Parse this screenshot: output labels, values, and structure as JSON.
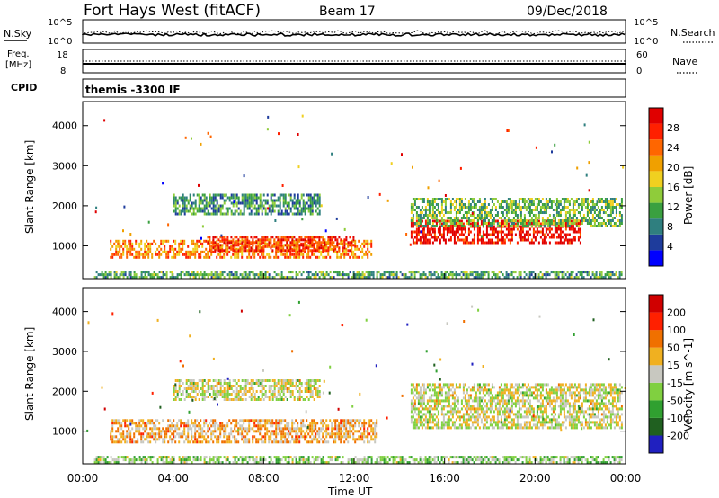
{
  "header": {
    "station": "Fort Hays West (fitACF)",
    "beam": "Beam 17",
    "date": "09/Dec/2018"
  },
  "aux_panels": {
    "nsky_label": "N.Sky",
    "nsearch_label": "N.Search",
    "noise_tick_top": "10^5",
    "noise_tick_bottom": "10^0",
    "freq_label_1": "Freq.",
    "freq_label_2": "[MHz]",
    "freq_ticks": [
      "18",
      "8"
    ],
    "nave_label": "Nave",
    "nave_ticks": [
      "60",
      "0"
    ],
    "cpid_label": "CPID",
    "cpid_value": "themis -3300 IF"
  },
  "chart_data": [
    {
      "type": "heatmap",
      "quantity": "Power",
      "ylabel": "Slant Range [km]",
      "xlabel": "",
      "colorbar_label": "Power [dB]",
      "colorbar_ticks": [
        "28",
        "24",
        "20",
        "16",
        "12",
        "8",
        "4"
      ],
      "colors": [
        "#0000ff",
        "#1e3c9c",
        "#2f7f7f",
        "#3aa040",
        "#8fcc3a",
        "#f0d020",
        "#f0a000",
        "#ff6600",
        "#ff2000",
        "#e00000"
      ],
      "ylim": [
        180,
        4600
      ],
      "yticks": [
        1000,
        2000,
        3000,
        4000
      ],
      "xlim_hours": [
        0,
        24
      ],
      "regions": [
        {
          "t0": 1.2,
          "t1": 12.8,
          "r0": 700,
          "r1": 1150,
          "level": 0.7
        },
        {
          "t0": 5.5,
          "t1": 12.0,
          "r0": 850,
          "r1": 1250,
          "level": 0.85
        },
        {
          "t0": 14.5,
          "t1": 22.0,
          "r0": 1100,
          "r1": 1650,
          "level": 0.95
        },
        {
          "t0": 4.0,
          "t1": 10.5,
          "r0": 1800,
          "r1": 2300,
          "level": 0.3
        },
        {
          "t0": 14.5,
          "t1": 23.8,
          "r0": 1500,
          "r1": 2200,
          "level": 0.4
        },
        {
          "t0": 0.5,
          "t1": 23.8,
          "r0": 200,
          "r1": 380,
          "level": 0.35
        }
      ]
    },
    {
      "type": "heatmap",
      "quantity": "Velocity",
      "ylabel": "Slant Range [km]",
      "xlabel": "Time UT",
      "colorbar_label": "Velocity [m s^-1]",
      "colorbar_ticks": [
        "200",
        "100",
        "50",
        "15",
        "-15",
        "-50",
        "-100",
        "-200"
      ],
      "colors": [
        "#2020c0",
        "#206020",
        "#30a030",
        "#80d040",
        "#c8c8c0",
        "#f0b020",
        "#f07000",
        "#ff2000",
        "#d00000"
      ],
      "ylim": [
        180,
        4600
      ],
      "yticks": [
        1000,
        2000,
        3000,
        4000
      ],
      "xlim_hours": [
        0,
        24
      ],
      "xticks": [
        "00:00",
        "04:00",
        "08:00",
        "12:00",
        "16:00",
        "20:00",
        "00:00"
      ],
      "regions": [
        {
          "t0": 1.2,
          "t1": 13.0,
          "r0": 700,
          "r1": 1300,
          "level": 0.62
        },
        {
          "t0": 14.5,
          "t1": 23.8,
          "r0": 1100,
          "r1": 2200,
          "level": 0.5
        },
        {
          "t0": 4.0,
          "t1": 10.5,
          "r0": 1800,
          "r1": 2300,
          "level": 0.5
        },
        {
          "t0": 0.5,
          "t1": 23.8,
          "r0": 200,
          "r1": 380,
          "level": 0.4
        }
      ]
    }
  ]
}
